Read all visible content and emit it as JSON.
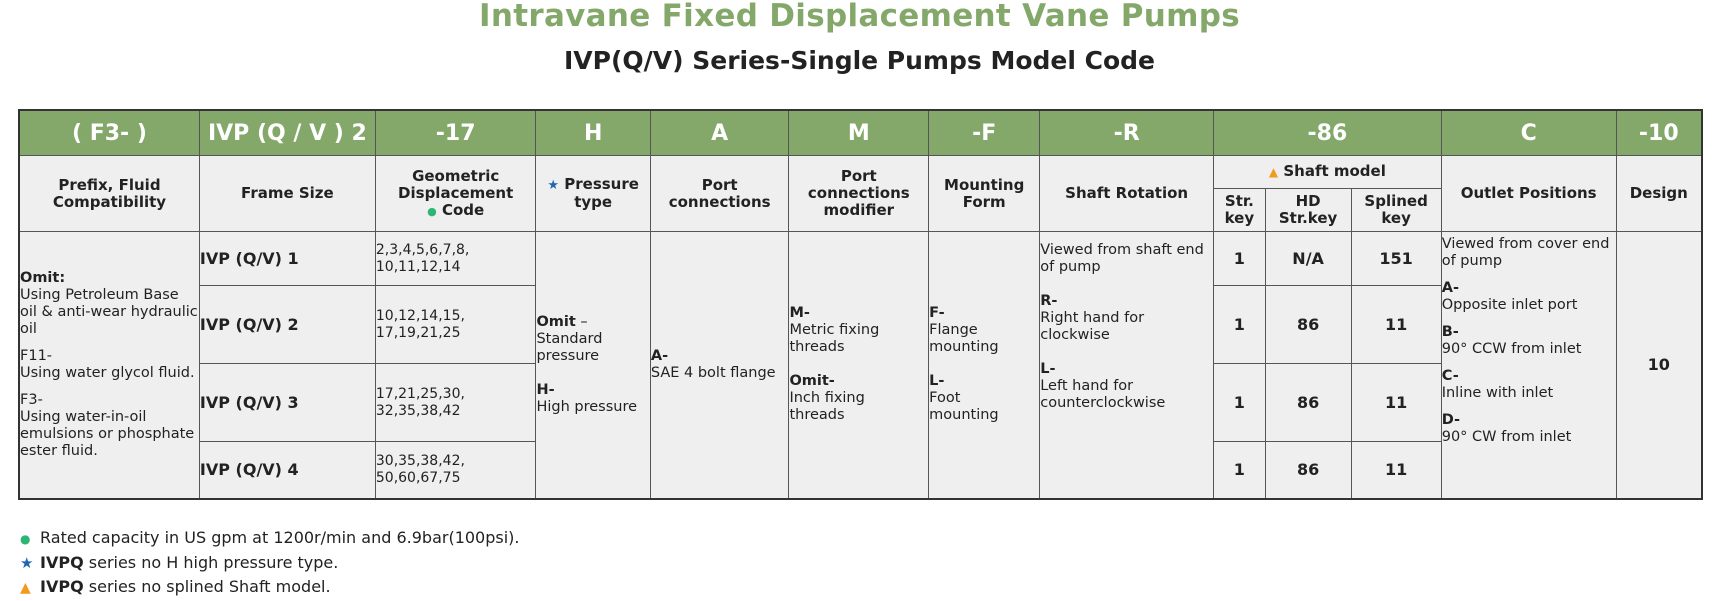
{
  "title": "Intravane Fixed Displacement Vane Pumps",
  "subtitle": "IVP(Q/V) Series-Single Pumps Model Code",
  "colors": {
    "header_green": "#84a86a",
    "dot": "#2bb673",
    "star": "#2166b0",
    "triangle": "#f39a1e"
  },
  "symbols": {
    "dot": "●",
    "star": "★",
    "triangle": "▲"
  },
  "codes": [
    "( F3- )",
    "IVP (Q / V ) 2",
    "-17",
    "H",
    "A",
    "M",
    "-F",
    "-R",
    "-86",
    "C",
    "-10"
  ],
  "headers": {
    "prefix": [
      "Prefix, Fluid",
      "Compatibility"
    ],
    "frame": "Frame Size",
    "geometric": [
      "Geometric",
      "Displacement",
      "Code"
    ],
    "pressure": [
      "Pressure",
      "type"
    ],
    "port": [
      "Port",
      "connections"
    ],
    "port_mod": [
      "Port",
      "connections",
      "modifier"
    ],
    "mounting": [
      "Mounting",
      "Form"
    ],
    "rotation": "Shaft Rotation",
    "shaft_model": "Shaft model",
    "str_key": [
      "Str.",
      "key"
    ],
    "hd_key": [
      "HD",
      "Str.key"
    ],
    "splined": [
      "Splined",
      "key"
    ],
    "outlet": "Outlet Positions",
    "design": "Design"
  },
  "prefix": {
    "omit_code": "Omit:",
    "omit_text": [
      "Using Petroleum Base",
      "oil & anti-wear hydraulic",
      "oil"
    ],
    "f11_code": "F11-",
    "f11_text": "Using water glycol fluid.",
    "f3_code": "F3-",
    "f3_text": [
      "Using water-in-oil",
      "emulsions or phosphate",
      "ester fluid."
    ]
  },
  "rows": [
    {
      "frame": "IVP (Q/V) 1",
      "disp": [
        "2,3,4,5,6,7,8,",
        "10,11,12,14"
      ],
      "str": "1",
      "hd": "N/A",
      "spl": "151"
    },
    {
      "frame": "IVP (Q/V) 2",
      "disp": [
        "10,12,14,15,",
        "17,19,21,25"
      ],
      "str": "1",
      "hd": "86",
      "spl": "11"
    },
    {
      "frame": "IVP (Q/V) 3",
      "disp": [
        "17,21,25,30,",
        "32,35,38,42"
      ],
      "str": "1",
      "hd": "86",
      "spl": "11"
    },
    {
      "frame": "IVP (Q/V) 4",
      "disp": [
        "30,35,38,42,",
        "50,60,67,75"
      ],
      "str": "1",
      "hd": "86",
      "spl": "11"
    }
  ],
  "pressure": {
    "omit_code": "Omit",
    "omit_sep": " –",
    "omit_text": [
      "Standard",
      "pressure"
    ],
    "h_code": "H-",
    "h_text": "High pressure"
  },
  "port": {
    "a_code": "A-",
    "a_text": "SAE 4 bolt flange"
  },
  "port_mod": {
    "m_code": "M-",
    "m_text": [
      "Metric fixing",
      "threads"
    ],
    "omit_code": "Omit-",
    "omit_text": [
      "Inch fixing",
      "threads"
    ]
  },
  "mounting": {
    "f_code": "F-",
    "f_text": [
      "Flange",
      "mounting"
    ],
    "l_code": "L-",
    "l_text": [
      "Foot",
      "mounting"
    ]
  },
  "rotation": {
    "intro": [
      "Viewed from shaft end",
      "of pump"
    ],
    "r_code": "R-",
    "r_text": [
      "Right hand for",
      "clockwise"
    ],
    "l_code": "L-",
    "l_text": [
      "Left hand for",
      "counterclockwise"
    ]
  },
  "outlet": {
    "intro": [
      "Viewed from cover end",
      "of pump"
    ],
    "a_code": "A-",
    "a_text": "Opposite inlet port",
    "b_code": "B-",
    "b_text": "90° CCW from inlet",
    "c_code": "C-",
    "c_text": "Inline with inlet",
    "d_code": "D-",
    "d_text": "90° CW from inlet"
  },
  "design": "10",
  "notes": {
    "n1": "Rated capacity in US gpm at 1200r/min and 6.9bar(100psi).",
    "n2_bold": "IVPQ",
    "n2": " series no H high pressure type.",
    "n3_bold": "IVPQ",
    "n3": " series no splined Shaft model."
  }
}
